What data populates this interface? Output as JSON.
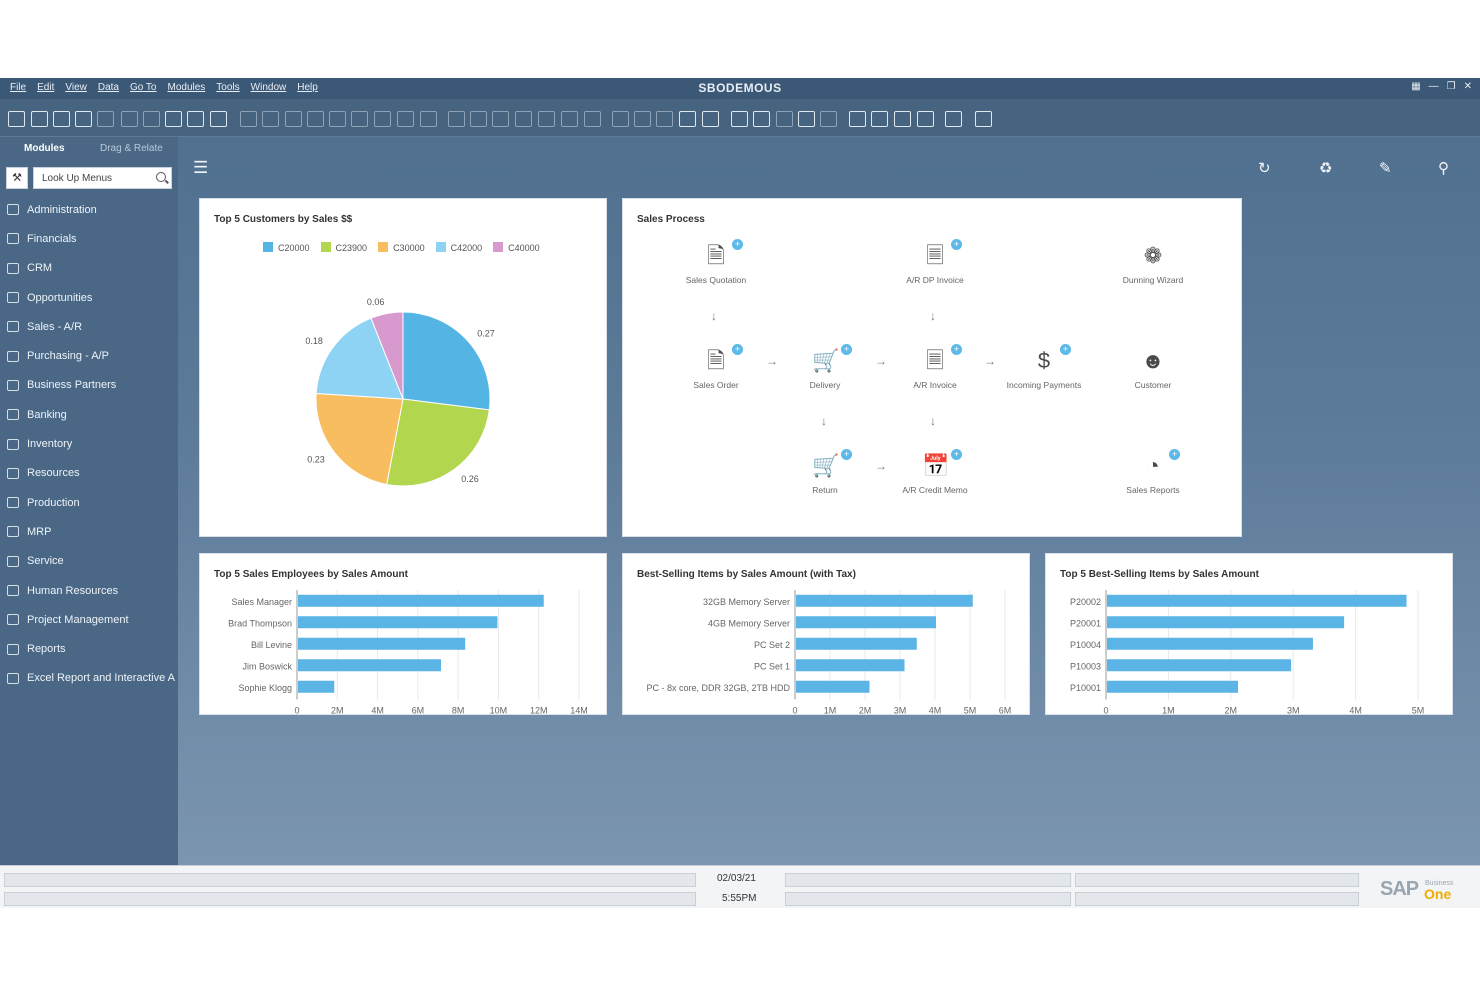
{
  "window": {
    "title": "SBODEMOUS",
    "menu": [
      "File",
      "Edit",
      "View",
      "Data",
      "Go To",
      "Modules",
      "Tools",
      "Window",
      "Help"
    ]
  },
  "sidebar": {
    "tabs": [
      "Modules",
      "Drag & Relate"
    ],
    "search_placeholder": "Look Up Menus",
    "items": [
      "Administration",
      "Financials",
      "CRM",
      "Opportunities",
      "Sales - A/R",
      "Purchasing - A/P",
      "Business Partners",
      "Banking",
      "Inventory",
      "Resources",
      "Production",
      "MRP",
      "Service",
      "Human Resources",
      "Project Management",
      "Reports",
      "Excel Report and Interactive A"
    ]
  },
  "pie_card": {
    "title": "Top 5 Customers by Sales $$",
    "chart_data": {
      "type": "pie",
      "title": "Top 5 Customers by Sales $$",
      "legend_position": "top",
      "series": [
        {
          "name": "C20000",
          "value": 0.27,
          "color": "#54b4e4"
        },
        {
          "name": "C23900",
          "value": 0.26,
          "color": "#b2d64e"
        },
        {
          "name": "C30000",
          "value": 0.23,
          "color": "#f7bd5e"
        },
        {
          "name": "C42000",
          "value": 0.18,
          "color": "#8fd3f4"
        },
        {
          "name": "C40000",
          "value": 0.06,
          "color": "#d899cf"
        }
      ]
    }
  },
  "process_card": {
    "title": "Sales Process",
    "steps": {
      "sales_quotation": "Sales Quotation",
      "ar_dp_invoice": "A/R DP Invoice",
      "dunning_wizard": "Dunning Wizard",
      "sales_order": "Sales Order",
      "delivery": "Delivery",
      "ar_invoice": "A/R Invoice",
      "incoming_payments": "Incoming Payments",
      "customer": "Customer",
      "return": "Return",
      "ar_credit_memo": "A/R Credit Memo",
      "sales_reports": "Sales Reports"
    }
  },
  "chart_data": [
    {
      "type": "bar",
      "orientation": "horizontal",
      "title": "Top 5 Sales Employees by Sales Amount",
      "categories": [
        "Sales Manager",
        "Brad Thompson",
        "Bill Levine",
        "Jim Boswick",
        "Sophie Klogg"
      ],
      "values": [
        12200000,
        9900000,
        8300000,
        7100000,
        1800000
      ],
      "ticks": [
        "0",
        "2M",
        "4M",
        "6M",
        "8M",
        "10M",
        "12M",
        "14M"
      ],
      "xlim": [
        0,
        14000000
      ],
      "color": "#5ab4e5"
    },
    {
      "type": "bar",
      "orientation": "horizontal",
      "title": "Best-Selling Items by Sales Amount (with Tax)",
      "categories": [
        "32GB Memory Server",
        "4GB Memory Server",
        "PC Set 2",
        "PC Set 1",
        "PC - 8x core, DDR 32GB, 2TB HDD"
      ],
      "values": [
        5050000,
        4000000,
        3450000,
        3100000,
        2100000
      ],
      "ticks": [
        "0",
        "1M",
        "2M",
        "3M",
        "4M",
        "5M",
        "6M"
      ],
      "xlim": [
        0,
        6000000
      ],
      "color": "#5ab4e5"
    },
    {
      "type": "bar",
      "orientation": "horizontal",
      "title": "Top 5 Best-Selling Items by Sales Amount",
      "categories": [
        "P20002",
        "P20001",
        "P10004",
        "P10003",
        "P10001"
      ],
      "values": [
        4800000,
        3800000,
        3300000,
        2950000,
        2100000
      ],
      "ticks": [
        "0",
        "1M",
        "2M",
        "3M",
        "4M",
        "5M"
      ],
      "xlim": [
        0,
        5000000
      ],
      "color": "#5ab4e5"
    }
  ],
  "status": {
    "date": "02/03/21",
    "time": "5:55PM"
  },
  "logo": {
    "sap": "SAP",
    "business": "Business",
    "one": "One"
  }
}
